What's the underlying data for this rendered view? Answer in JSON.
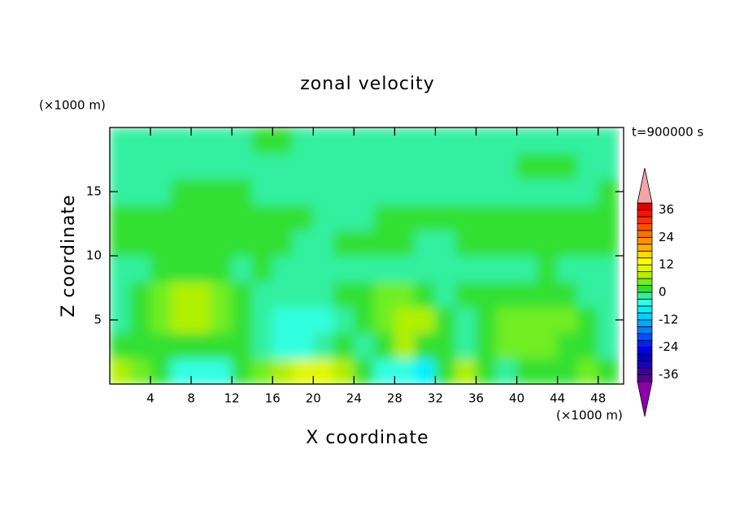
{
  "chart_data": {
    "type": "contour",
    "title": "zonal velocity",
    "xlabel": "X coordinate",
    "ylabel": "Z coordinate",
    "x_unit_label": "(×1000 m)",
    "y_unit_label": "(×1000 m)",
    "time_label": "t=900000 s",
    "xlim": [
      0,
      50.5
    ],
    "ylim": [
      0,
      20
    ],
    "xticks": [
      4,
      8,
      12,
      16,
      20,
      24,
      28,
      32,
      36,
      40,
      44,
      48
    ],
    "yticks": [
      5,
      10,
      15
    ],
    "x": [
      1,
      3,
      5,
      7,
      9,
      11,
      13,
      15,
      17,
      19,
      21,
      23,
      25,
      27,
      29,
      31,
      33,
      35,
      37,
      39,
      41,
      43,
      45,
      47,
      49
    ],
    "y": [
      1,
      3,
      5,
      7,
      9,
      11,
      13,
      15,
      17,
      19
    ],
    "z": [
      [
        7.5,
        4.5,
        1.5,
        -4.5,
        -4.5,
        -4.5,
        1.5,
        4.5,
        7.5,
        10,
        10,
        7.5,
        1.5,
        -4.5,
        -4.5,
        -7.5,
        1.5,
        7.5,
        1.5,
        -2,
        1.5,
        1.5,
        1.5,
        4.5,
        1.5
      ],
      [
        1.5,
        1.5,
        1.5,
        1.5,
        1.5,
        1.5,
        1.5,
        -2,
        -4.5,
        -4.5,
        -2,
        1.5,
        -2,
        1.5,
        7.5,
        1.5,
        1.5,
        -2,
        1.5,
        4.5,
        4.5,
        4.5,
        1.5,
        1.5,
        -2
      ],
      [
        -2,
        1.5,
        4.5,
        7.5,
        7.5,
        4.5,
        1.5,
        -2,
        -4.5,
        -4.5,
        -4.5,
        -2,
        1.5,
        4.5,
        7.5,
        7.5,
        1.5,
        -2,
        1.5,
        4.5,
        4.5,
        4.5,
        4.5,
        1.5,
        -2
      ],
      [
        -2,
        1.5,
        4.5,
        7.5,
        7.5,
        4.5,
        1.5,
        -2,
        -2,
        -2,
        -2,
        1.5,
        1.5,
        4.5,
        4.5,
        1.5,
        -2,
        1.5,
        1.5,
        1.5,
        1.5,
        1.5,
        1.5,
        -2,
        -2
      ],
      [
        -2,
        -2,
        1.5,
        1.5,
        1.5,
        1.5,
        -2,
        1.5,
        -2,
        -2,
        -2,
        -2,
        -2,
        -2,
        -2,
        -2,
        -2,
        -2,
        -2,
        -2,
        -2,
        1.5,
        -2,
        -2,
        -2
      ],
      [
        1.5,
        1.5,
        1.5,
        1.5,
        1.5,
        1.5,
        1.5,
        1.5,
        1.5,
        -2,
        -2,
        1.5,
        1.5,
        1.5,
        1.5,
        -2,
        -2,
        1.5,
        1.5,
        1.5,
        1.5,
        1.5,
        1.5,
        1.5,
        1.5
      ],
      [
        1.5,
        1.5,
        1.5,
        1.5,
        1.5,
        1.5,
        1.5,
        1.5,
        1.5,
        1.5,
        -2,
        -2,
        -2,
        1.5,
        1.5,
        1.5,
        1.5,
        1.5,
        1.5,
        1.5,
        1.5,
        1.5,
        1.5,
        1.5,
        1.5
      ],
      [
        -2,
        -2,
        -2,
        1.5,
        1.5,
        1.5,
        1.5,
        -2,
        -2,
        -2,
        -2,
        -2,
        -2,
        -2,
        -2,
        -2,
        -2,
        -2,
        -2,
        -2,
        -2,
        -2,
        -2,
        -2,
        1.5
      ],
      [
        -2,
        -2,
        -2,
        -2,
        -2,
        -2,
        -2,
        -2,
        -2,
        -2,
        -2,
        -2,
        -2,
        -2,
        -2,
        -2,
        -2,
        -2,
        -2,
        -2,
        1.5,
        1.5,
        1.5,
        -2,
        -2
      ],
      [
        -2,
        -2,
        -2,
        -2,
        -2,
        -2,
        -2,
        1.5,
        1.5,
        -2,
        -2,
        -2,
        -2,
        -2,
        -2,
        -2,
        -2,
        -2,
        -2,
        -2,
        -2,
        -2,
        -2,
        -2,
        -2
      ]
    ],
    "levels": [
      -39,
      -36,
      -33,
      -30,
      -27,
      -24,
      -21,
      -18,
      -15,
      -12,
      -9,
      -6,
      -3,
      0,
      3,
      6,
      9,
      12,
      15,
      18,
      21,
      24,
      27,
      30,
      33,
      36,
      39
    ],
    "colors": [
      "#5a008c",
      "#3c00a0",
      "#1e00b4",
      "#0000c8",
      "#0000e6",
      "#0020ff",
      "#0050ff",
      "#0080ff",
      "#00a8ff",
      "#00d0ff",
      "#00f0ff",
      "#30ffe0",
      "#30f0a0",
      "#30e030",
      "#70ee20",
      "#b0f000",
      "#e0f800",
      "#ffff00",
      "#ffd800",
      "#ffb000",
      "#ff9000",
      "#ff7000",
      "#ff5000",
      "#ff3000",
      "#ff1000",
      "#e00000"
    ],
    "under_color": "#8c00a8",
    "over_color": "#f4a4a4",
    "colorbar_ticks": [
      -36,
      -24,
      -12,
      0,
      12,
      24,
      36
    ]
  }
}
